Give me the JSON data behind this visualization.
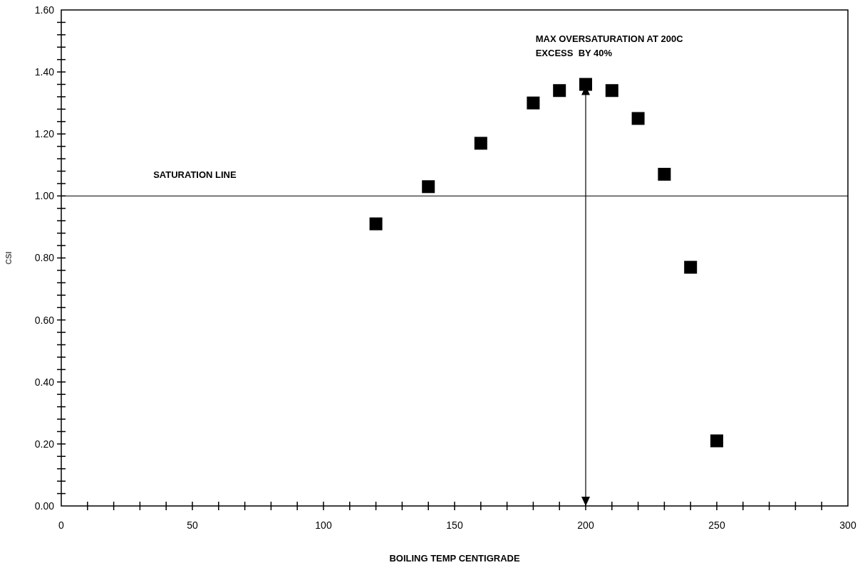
{
  "chart_data": {
    "type": "scatter",
    "xlabel": "BOILING TEMP CENTIGRADE",
    "ylabel": "CSI",
    "x": [
      120,
      140,
      160,
      180,
      190,
      200,
      210,
      220,
      230,
      240,
      250
    ],
    "values": [
      0.91,
      1.03,
      1.17,
      1.3,
      1.34,
      1.36,
      1.34,
      1.25,
      1.07,
      0.77,
      0.21
    ],
    "color": "#000000",
    "marker": "square",
    "xlim": [
      0,
      300
    ],
    "xticks": [
      0,
      {
        "value": 10,
        "label": null
      },
      {
        "value": 20,
        "label": null
      },
      {
        "value": 30,
        "label": null
      },
      {
        "value": 40,
        "label": null
      },
      50,
      {
        "value": 60,
        "label": null
      },
      {
        "value": 70,
        "label": null
      },
      {
        "value": 80,
        "label": null
      },
      {
        "value": 90,
        "label": null
      },
      100,
      {
        "value": 110,
        "label": null
      },
      {
        "value": 120,
        "label": null
      },
      {
        "value": 130,
        "label": null
      },
      {
        "value": 140,
        "label": null
      },
      150,
      {
        "value": 160,
        "label": null
      },
      {
        "value": 170,
        "label": null
      },
      {
        "value": 180,
        "label": null
      },
      {
        "value": 190,
        "label": null
      },
      200,
      {
        "value": 210,
        "label": null
      },
      {
        "value": 220,
        "label": null
      },
      {
        "value": 230,
        "label": null
      },
      {
        "value": 240,
        "label": null
      },
      250,
      {
        "value": 260,
        "label": null
      },
      {
        "value": 270,
        "label": null
      },
      {
        "value": 280,
        "label": null
      },
      {
        "value": 290,
        "label": null
      },
      300
    ],
    "ylim": [
      0,
      1.6
    ],
    "yticks": [
      {
        "value": 0,
        "label": "0.00"
      },
      {
        "value": 0.04,
        "label": null
      },
      {
        "value": 0.08,
        "label": null
      },
      {
        "value": 0.12,
        "label": null
      },
      {
        "value": 0.16,
        "label": null
      },
      {
        "value": 0.2,
        "label": "0.20"
      },
      {
        "value": 0.24,
        "label": null
      },
      {
        "value": 0.28,
        "label": null
      },
      {
        "value": 0.32,
        "label": null
      },
      {
        "value": 0.36,
        "label": null
      },
      {
        "value": 0.4,
        "label": "0.40"
      },
      {
        "value": 0.44,
        "label": null
      },
      {
        "value": 0.48,
        "label": null
      },
      {
        "value": 0.52,
        "label": null
      },
      {
        "value": 0.56,
        "label": null
      },
      {
        "value": 0.6,
        "label": "0.60"
      },
      {
        "value": 0.64,
        "label": null
      },
      {
        "value": 0.68,
        "label": null
      },
      {
        "value": 0.72,
        "label": null
      },
      {
        "value": 0.76,
        "label": null
      },
      {
        "value": 0.8,
        "label": "0.80"
      },
      {
        "value": 0.84,
        "label": null
      },
      {
        "value": 0.88,
        "label": null
      },
      {
        "value": 0.92,
        "label": null
      },
      {
        "value": 0.96,
        "label": null
      },
      {
        "value": 1.0,
        "label": "1.00"
      },
      {
        "value": 1.04,
        "label": null
      },
      {
        "value": 1.08,
        "label": null
      },
      {
        "value": 1.12,
        "label": null
      },
      {
        "value": 1.16,
        "label": null
      },
      {
        "value": 1.2,
        "label": "1.20"
      },
      {
        "value": 1.24,
        "label": null
      },
      {
        "value": 1.28,
        "label": null
      },
      {
        "value": 1.32,
        "label": null
      },
      {
        "value": 1.36,
        "label": null
      },
      {
        "value": 1.4,
        "label": "1.40"
      },
      {
        "value": 1.44,
        "label": null
      },
      {
        "value": 1.48,
        "label": null
      },
      {
        "value": 1.52,
        "label": null
      },
      {
        "value": 1.56,
        "label": null
      },
      {
        "value": 1.6,
        "label": "1.60"
      }
    ],
    "ref_lines": [
      {
        "axis": "y",
        "value": 1.0,
        "label": "SATURATION LINE",
        "color": "#000000"
      }
    ],
    "annotations": [
      "MAX OVERSATURATION AT 200C",
      "EXCESS  BY 40%"
    ]
  }
}
